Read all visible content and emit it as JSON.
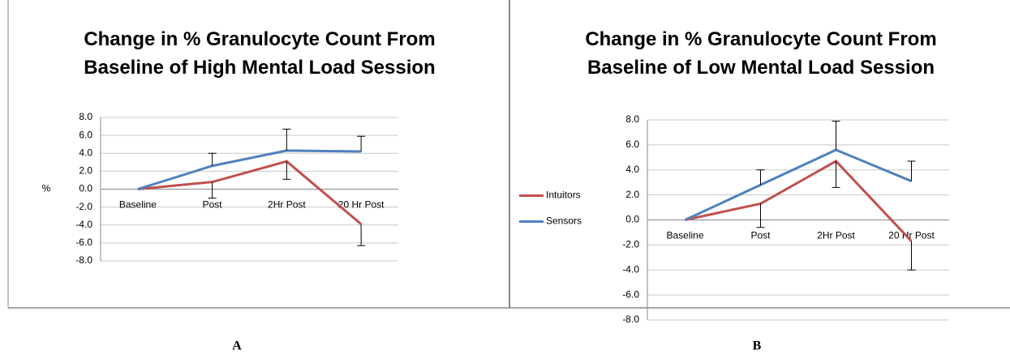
{
  "chart_data": [
    {
      "type": "line",
      "title": "Change in % Granulocyte Count From Baseline of High Mental Load Session",
      "ylabel": "%",
      "panel_label": "A",
      "categories": [
        "Baseline",
        "Post",
        "2Hr Post",
        "20 Hr Post"
      ],
      "series": [
        {
          "name": "Intuitors",
          "color": "#c0504d",
          "values": [
            0,
            0.8,
            3.1,
            -3.9
          ],
          "errors": [
            null,
            1.8,
            2.0,
            2.4
          ],
          "error_direction": "minus"
        },
        {
          "name": "Sensors",
          "color": "#4f81bd",
          "values": [
            0,
            2.6,
            4.3,
            4.2
          ],
          "errors": [
            null,
            1.4,
            2.4,
            1.7
          ],
          "error_direction": "plus"
        }
      ],
      "ylim": [
        -8,
        8
      ],
      "yticks": [
        {
          "value": 8,
          "label": "8.0"
        },
        {
          "value": 6,
          "label": "6.0"
        },
        {
          "value": 4,
          "label": "4.0"
        },
        {
          "value": 2,
          "label": "2.0"
        },
        {
          "value": 0,
          "label": "0.0"
        },
        {
          "value": -2,
          "label": "-2.0"
        },
        {
          "value": -4,
          "label": "-4.0"
        },
        {
          "value": -6,
          "label": "-6.0"
        },
        {
          "value": -8,
          "label": "-8.0"
        }
      ],
      "grid": true
    },
    {
      "type": "line",
      "title": "Change in % Granulocyte Count From Baseline of Low Mental Load Session",
      "panel_label": "B",
      "legend": "left",
      "categories": [
        "Baseline",
        "Post",
        "2Hr Post",
        "20 Hr Post"
      ],
      "series": [
        {
          "name": "Intuitors",
          "color": "#c0504d",
          "values": [
            0,
            1.3,
            4.7,
            -1.7
          ],
          "errors": [
            null,
            1.9,
            2.1,
            2.3
          ],
          "error_direction": "minus"
        },
        {
          "name": "Sensors",
          "color": "#4f81bd",
          "values": [
            0,
            2.8,
            5.6,
            3.1
          ],
          "errors": [
            null,
            1.2,
            2.3,
            1.6
          ],
          "error_direction": "plus"
        }
      ],
      "ylim": [
        -8,
        8
      ],
      "yticks": [
        {
          "value": 8,
          "label": "8.0"
        },
        {
          "value": 6,
          "label": "6.0"
        },
        {
          "value": 4,
          "label": "4.0"
        },
        {
          "value": 2,
          "label": "2.0"
        },
        {
          "value": 0,
          "label": "0.0"
        },
        {
          "value": -2,
          "label": "-2.0"
        },
        {
          "value": -4,
          "label": "-4.0"
        },
        {
          "value": -6,
          "label": "-6.0"
        },
        {
          "value": -8,
          "label": "-8.0"
        }
      ],
      "grid": true
    }
  ]
}
